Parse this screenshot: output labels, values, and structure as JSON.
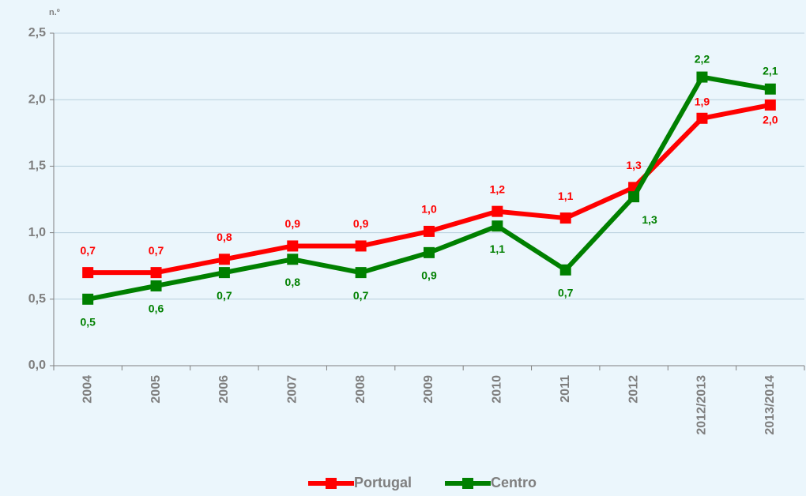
{
  "chart_data": {
    "type": "line",
    "y_unit": "n.º",
    "categories": [
      "2004",
      "2005",
      "2006",
      "2007",
      "2008",
      "2009",
      "2010",
      "2011",
      "2012",
      "2012/2013",
      "2013/2014"
    ],
    "series": [
      {
        "name": "Portugal",
        "color": "#ff0000",
        "values": [
          0.7,
          0.7,
          0.8,
          0.9,
          0.9,
          1.01,
          1.16,
          1.11,
          1.34,
          1.86,
          1.96
        ],
        "value_labels": [
          "0,7",
          "0,7",
          "0,8",
          "0,9",
          "0,9",
          "1,0",
          "1,2",
          "1,1",
          "1,3",
          "1,9",
          "2,0"
        ]
      },
      {
        "name": "Centro",
        "color": "#008000",
        "values": [
          0.5,
          0.6,
          0.7,
          0.8,
          0.7,
          0.85,
          1.05,
          0.72,
          1.27,
          2.17,
          2.08
        ],
        "value_labels": [
          "0,5",
          "0,6",
          "0,7",
          "0,8",
          "0,7",
          "0,9",
          "1,1",
          "0,7",
          "1,3",
          "2,2",
          "2,1"
        ]
      }
    ],
    "ylim": [
      0,
      2.5
    ],
    "yticks": [
      {
        "value": 0,
        "label": "0,0"
      },
      {
        "value": 0.5,
        "label": "0,5"
      },
      {
        "value": 1,
        "label": "1,0"
      },
      {
        "value": 1.5,
        "label": "1,5"
      },
      {
        "value": 2,
        "label": "2,0"
      },
      {
        "value": 2.5,
        "label": "2,5"
      }
    ],
    "grid": true
  }
}
